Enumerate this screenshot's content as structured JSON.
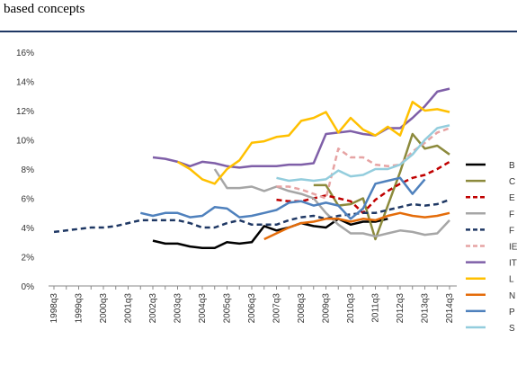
{
  "header": {
    "text": "based concepts"
  },
  "chart_data": {
    "type": "line",
    "categories": [
      "1998q3",
      null,
      "1999q3",
      null,
      "2000q3",
      null,
      "2001q3",
      null,
      "2002q3",
      null,
      "2003q3",
      null,
      "2004q3",
      null,
      "2005q3",
      null,
      "2006q3",
      null,
      "2007q3",
      null,
      "2008q3",
      null,
      "2009q3",
      null,
      "2010q3",
      null,
      "2011q3",
      null,
      "2012q3",
      null,
      "2013q3",
      null,
      "2014q3"
    ],
    "ylim": [
      0,
      16
    ],
    "yticks": [
      {
        "value": 0,
        "label": "0%"
      },
      {
        "value": 2,
        "label": "2%"
      },
      {
        "value": 4,
        "label": "4%"
      },
      {
        "value": 6,
        "label": "6%"
      },
      {
        "value": 8,
        "label": "8%"
      },
      {
        "value": 10,
        "label": "10%"
      },
      {
        "value": 12,
        "label": "12%"
      },
      {
        "value": 14,
        "label": "14%"
      },
      {
        "value": 16,
        "label": "16%"
      }
    ],
    "series": [
      {
        "name": "B",
        "color": "#000000",
        "dashed": false,
        "values": [
          null,
          null,
          null,
          null,
          null,
          null,
          null,
          null,
          3.1,
          2.9,
          2.9,
          2.7,
          2.6,
          2.6,
          3.0,
          2.9,
          3.0,
          4.1,
          3.8,
          4.0,
          4.3,
          4.1,
          4.0,
          4.6,
          4.2,
          4.4,
          4.4,
          4.6,
          null,
          null,
          null,
          null,
          null
        ]
      },
      {
        "name": "C",
        "color": "#8c8a3c",
        "dashed": false,
        "values": [
          null,
          null,
          null,
          null,
          null,
          null,
          null,
          null,
          null,
          null,
          null,
          null,
          null,
          null,
          null,
          null,
          null,
          null,
          null,
          null,
          null,
          6.9,
          6.9,
          5.5,
          5.6,
          6.0,
          3.2,
          5.5,
          7.8,
          10.4,
          9.4,
          9.6,
          9.0
        ]
      },
      {
        "name": "E",
        "color": "#c00000",
        "dashed": true,
        "values": [
          null,
          null,
          null,
          null,
          null,
          null,
          null,
          null,
          null,
          null,
          null,
          null,
          null,
          null,
          null,
          null,
          null,
          null,
          5.9,
          5.8,
          5.8,
          6.0,
          6.2,
          6.0,
          5.8,
          5.0,
          5.9,
          6.5,
          7.0,
          7.4,
          7.6,
          8.0,
          8.5
        ]
      },
      {
        "name": "F",
        "color": "#a6a6a6",
        "dashed": false,
        "values": [
          null,
          null,
          null,
          null,
          null,
          null,
          null,
          null,
          null,
          null,
          null,
          null,
          null,
          8.0,
          6.7,
          6.7,
          6.8,
          6.5,
          6.8,
          6.5,
          6.3,
          6.0,
          5.0,
          4.2,
          3.6,
          3.6,
          3.4,
          3.6,
          3.8,
          3.7,
          3.5,
          3.6,
          4.5
        ]
      },
      {
        "name": "F",
        "color": "#1f3864",
        "dashed": true,
        "values": [
          3.7,
          3.8,
          3.9,
          4.0,
          4.0,
          4.1,
          4.3,
          4.5,
          4.5,
          4.5,
          4.5,
          4.3,
          4.0,
          4.0,
          4.3,
          4.5,
          4.2,
          4.2,
          4.2,
          4.5,
          4.7,
          4.8,
          4.6,
          4.8,
          4.9,
          5.0,
          5.0,
          5.2,
          5.4,
          5.6,
          5.5,
          5.6,
          5.9
        ]
      },
      {
        "name": "IE",
        "color": "#e6a3a3",
        "dashed": true,
        "values": [
          null,
          null,
          null,
          null,
          null,
          null,
          null,
          null,
          null,
          null,
          null,
          null,
          null,
          null,
          null,
          null,
          null,
          null,
          6.8,
          6.8,
          6.6,
          6.3,
          6.0,
          9.4,
          8.8,
          8.8,
          8.3,
          8.2,
          8.3,
          9.2,
          9.8,
          10.5,
          10.8
        ]
      },
      {
        "name": "IT",
        "color": "#7f5fa8",
        "dashed": false,
        "values": [
          null,
          null,
          null,
          null,
          null,
          null,
          null,
          null,
          8.8,
          8.7,
          8.5,
          8.2,
          8.5,
          8.4,
          8.2,
          8.1,
          8.2,
          8.2,
          8.2,
          8.3,
          8.3,
          8.4,
          10.4,
          10.5,
          10.6,
          10.4,
          10.3,
          10.8,
          10.8,
          11.5,
          12.3,
          13.3,
          13.5
        ]
      },
      {
        "name": "L",
        "color": "#ffc000",
        "dashed": false,
        "values": [
          null,
          null,
          null,
          null,
          null,
          null,
          null,
          null,
          null,
          null,
          8.5,
          8.0,
          7.3,
          7.0,
          8.0,
          8.6,
          9.8,
          9.9,
          10.2,
          10.3,
          11.3,
          11.5,
          11.9,
          10.5,
          11.5,
          10.7,
          10.3,
          10.9,
          10.3,
          12.6,
          12.0,
          12.1,
          11.9
        ]
      },
      {
        "name": "N",
        "color": "#e46c0a",
        "dashed": false,
        "values": [
          null,
          null,
          null,
          null,
          null,
          null,
          null,
          null,
          null,
          null,
          null,
          null,
          null,
          null,
          null,
          null,
          null,
          3.2,
          3.6,
          4.0,
          4.3,
          4.4,
          4.6,
          4.6,
          4.4,
          4.6,
          4.5,
          4.8,
          5.0,
          4.8,
          4.7,
          4.8,
          5.0
        ]
      },
      {
        "name": "P",
        "color": "#4f81bd",
        "dashed": false,
        "values": [
          null,
          null,
          null,
          null,
          null,
          null,
          null,
          5.0,
          4.8,
          5.0,
          5.0,
          4.7,
          4.8,
          5.4,
          5.3,
          4.7,
          4.8,
          5.0,
          5.2,
          5.7,
          5.8,
          5.5,
          5.7,
          5.5,
          4.6,
          5.3,
          7.0,
          7.2,
          7.4,
          6.3,
          7.3,
          null,
          null
        ]
      },
      {
        "name": "S",
        "color": "#93cddd",
        "dashed": false,
        "values": [
          null,
          null,
          null,
          null,
          null,
          null,
          null,
          null,
          null,
          null,
          null,
          null,
          null,
          null,
          null,
          null,
          null,
          null,
          7.4,
          7.2,
          7.3,
          7.2,
          7.3,
          7.9,
          7.5,
          7.6,
          8.0,
          8.0,
          8.3,
          9.0,
          10.0,
          10.8,
          11.0
        ]
      }
    ]
  }
}
